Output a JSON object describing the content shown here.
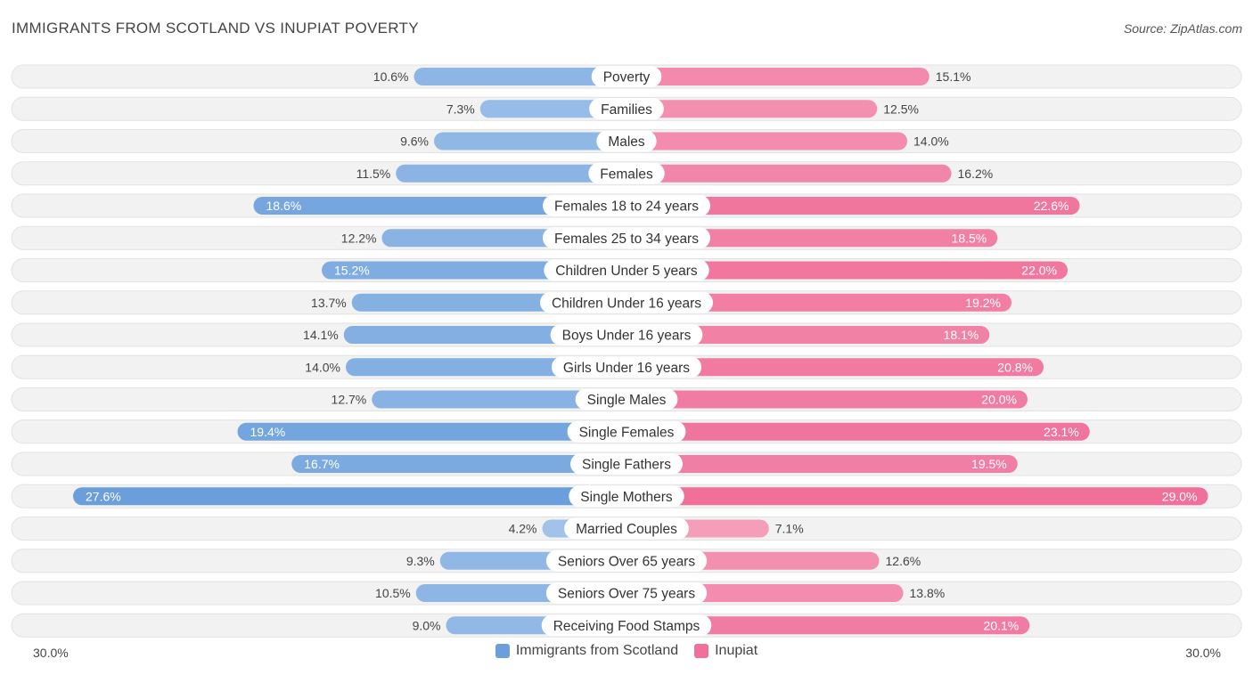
{
  "title": "IMMIGRANTS FROM SCOTLAND VS INUPIAT POVERTY",
  "source": "Source: ZipAtlas.com",
  "axis": {
    "left_label": "30.0%",
    "right_label": "30.0%"
  },
  "colors": {
    "left": "#6a9fdc",
    "right": "#f0709a",
    "row_bg": "#f2f2f2",
    "row_border": "#e2e2e2"
  },
  "legend": {
    "left": "Immigrants from Scotland",
    "right": "Inupiat"
  },
  "chart_data": {
    "type": "bar",
    "orientation": "diverging-horizontal",
    "xlim": [
      0,
      30
    ],
    "unit": "%",
    "categories": [
      "Poverty",
      "Families",
      "Males",
      "Females",
      "Females 18 to 24 years",
      "Females 25 to 34 years",
      "Children Under 5 years",
      "Children Under 16 years",
      "Boys Under 16 years",
      "Girls Under 16 years",
      "Single Males",
      "Single Females",
      "Single Fathers",
      "Single Mothers",
      "Married Couples",
      "Seniors Over 65 years",
      "Seniors Over 75 years",
      "Receiving Food Stamps"
    ],
    "series": [
      {
        "name": "Immigrants from Scotland",
        "values": [
          10.6,
          7.3,
          9.6,
          11.5,
          18.6,
          12.2,
          15.2,
          13.7,
          14.1,
          14.0,
          12.7,
          19.4,
          16.7,
          27.6,
          4.2,
          9.3,
          10.5,
          9.0
        ],
        "labels": [
          "10.6%",
          "7.3%",
          "9.6%",
          "11.5%",
          "18.6%",
          "12.2%",
          "15.2%",
          "13.7%",
          "14.1%",
          "14.0%",
          "12.7%",
          "19.4%",
          "16.7%",
          "27.6%",
          "4.2%",
          "9.3%",
          "10.5%",
          "9.0%"
        ]
      },
      {
        "name": "Inupiat",
        "values": [
          15.1,
          12.5,
          14.0,
          16.2,
          22.6,
          18.5,
          22.0,
          19.2,
          18.1,
          20.8,
          20.0,
          23.1,
          19.5,
          29.0,
          7.1,
          12.6,
          13.8,
          20.1
        ],
        "labels": [
          "15.1%",
          "12.5%",
          "14.0%",
          "16.2%",
          "22.6%",
          "18.5%",
          "22.0%",
          "19.2%",
          "18.1%",
          "20.8%",
          "20.0%",
          "23.1%",
          "19.5%",
          "29.0%",
          "7.1%",
          "12.6%",
          "13.8%",
          "20.1%"
        ]
      }
    ]
  }
}
